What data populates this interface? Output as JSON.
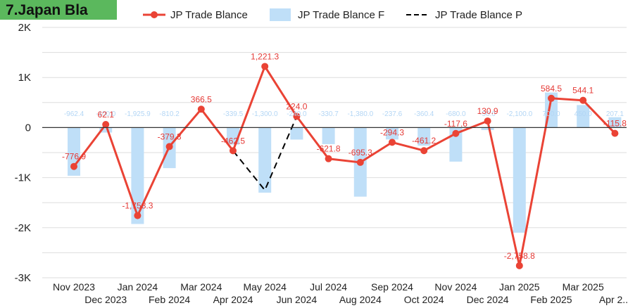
{
  "title": "7.Japan Bla",
  "colors": {
    "title_bg": "#5bb85d",
    "actual": "#ea4335",
    "forecast": "#bfdff8",
    "forecast_label": "#b3d6f5",
    "predicted": "#000000",
    "grid": "#dddddd",
    "axis": "#333333"
  },
  "chart_data": {
    "type": "bar+line",
    "title": "7.Japan Bla",
    "legend_position": "top",
    "grid": true,
    "ylim": [
      -3000,
      2000
    ],
    "y_ticks": [
      {
        "value": 2000,
        "label": "2K"
      },
      {
        "value": 1000,
        "label": "1K"
      },
      {
        "value": 0,
        "label": "0"
      },
      {
        "value": -1000,
        "label": "-1K"
      },
      {
        "value": -2000,
        "label": "-2K"
      },
      {
        "value": -3000,
        "label": "-3K"
      }
    ],
    "categories": [
      "Nov 2023",
      "Dec 2023",
      "Jan 2024",
      "Feb 2024",
      "Mar 2024",
      "Apr 2024",
      "May 2024",
      "Jun 2024",
      "Jul 2024",
      "Aug 2024",
      "Sep 2024",
      "Oct 2024",
      "Nov 2024",
      "Dec 2024",
      "Jan 2025",
      "Feb 2025",
      "Mar 2025",
      "Apr 2..."
    ],
    "series": [
      {
        "name": "JP Trade Blance",
        "kind": "line",
        "values": [
          -776.9,
          62.1,
          -1758.3,
          -379.3,
          366.5,
          -462.5,
          1221.3,
          224.0,
          -621.8,
          -695.3,
          -294.3,
          -461.2,
          -117.6,
          130.9,
          -2758.8,
          584.5,
          544.1,
          -115.8
        ],
        "labels": [
          "-776.9",
          "62.1",
          "-1,758.3",
          "-379.3",
          "366.5",
          "-462.5",
          "1,221.3",
          "224.0",
          "-621.8",
          "-695.3",
          "-294.3",
          "-461.2",
          "-117.6",
          "130.9",
          "-2,758.8",
          "584.5",
          "544.1",
          "-115.8"
        ]
      },
      {
        "name": "JP Trade Blance F",
        "kind": "bar",
        "values": [
          -962.4,
          -100.0,
          -1925.9,
          -810.2,
          0,
          -339.5,
          -1300.0,
          -240.0,
          -330.7,
          -1380.0,
          -237.6,
          -360.4,
          -680.0,
          -50.0,
          -2100.0,
          700.0,
          450.0,
          207.1
        ],
        "labels": [
          "-962.4",
          "-100.0",
          "-1,925.9",
          "-810.2",
          "",
          "-339.5",
          "-1,300.0",
          "-240.0",
          "-330.7",
          "-1,380.0",
          "-237.6",
          "-360.4",
          "-680.0",
          "-50.0",
          "-2,100.0",
          "700.0",
          "450.0",
          "207.1"
        ]
      },
      {
        "name": "JP Trade Blance P",
        "kind": "line-dashed",
        "values": [
          -776.9,
          62.1,
          -1758.3,
          -379.3,
          366.5,
          -462.5,
          -1250.0,
          224.0,
          -621.8,
          -695.3,
          -294.3,
          -461.2,
          -117.6,
          130.9,
          -2758.8,
          584.5,
          544.1,
          null
        ]
      }
    ]
  }
}
